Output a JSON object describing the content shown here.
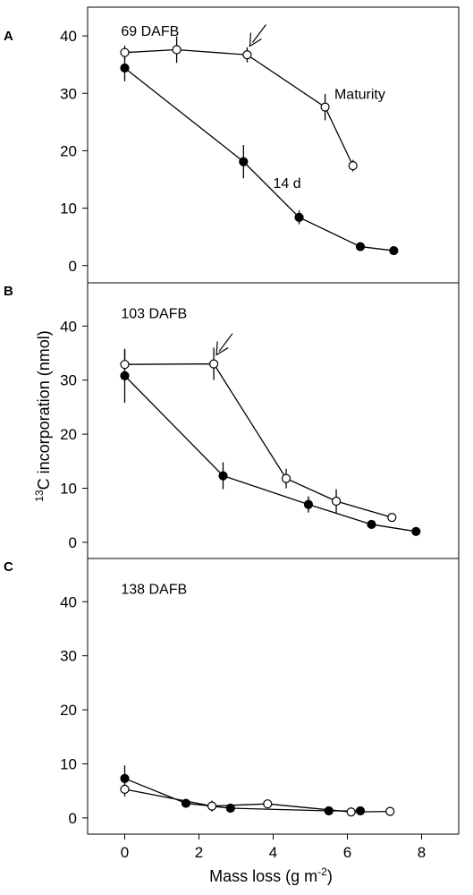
{
  "figure": {
    "xlabel_main": "Mass loss (g m",
    "xlabel_sup": "-2",
    "xlabel_close": ")",
    "ylabel_sup": "13",
    "ylabel_main": "C incorporation (nmol)"
  },
  "chart_data": [
    {
      "type": "line",
      "panel_letter": "A",
      "xlim": [
        -1,
        9
      ],
      "ylim": [
        -3,
        45
      ],
      "x_ticks": [
        0,
        2,
        4,
        6,
        8
      ],
      "y_ticks": [
        0,
        10,
        20,
        30,
        40
      ],
      "annotations": [
        {
          "text": "69 DAFB",
          "x": -0.1,
          "y": 40
        },
        {
          "text": "Maturity",
          "x": 5.65,
          "y": 29
        },
        {
          "text": "14 d",
          "x": 4.0,
          "y": 13.5
        }
      ],
      "arrow": {
        "tip_x": 3.3,
        "tip_y": 37.6
      },
      "series": [
        {
          "marker": "open",
          "x": [
            0,
            1.4,
            3.3,
            5.4,
            6.15
          ],
          "y": [
            37.1,
            37.6,
            36.7,
            27.6,
            17.4
          ],
          "err": [
            1.2,
            2.3,
            1.3,
            2.3,
            1.0
          ]
        },
        {
          "marker": "filled",
          "x": [
            0,
            3.2,
            4.7,
            6.35,
            7.25
          ],
          "y": [
            34.4,
            18.1,
            8.4,
            3.3,
            2.6
          ],
          "err": [
            2.3,
            2.9,
            1.2,
            0.4,
            0.3
          ]
        }
      ]
    },
    {
      "type": "line",
      "panel_letter": "B",
      "xlim": [
        -1,
        9
      ],
      "ylim": [
        -3,
        48
      ],
      "x_ticks": [
        0,
        2,
        4,
        6,
        8
      ],
      "y_ticks": [
        0,
        10,
        20,
        30,
        40
      ],
      "annotations": [
        {
          "text": "103 DAFB",
          "x": -0.1,
          "y": 41.5
        }
      ],
      "arrow": {
        "tip_x": 2.4,
        "tip_y": 34.0
      },
      "series": [
        {
          "marker": "open",
          "x": [
            0,
            2.4,
            4.35,
            5.7,
            7.2
          ],
          "y": [
            32.9,
            33.0,
            11.8,
            7.6,
            4.6
          ],
          "err": [
            2.7,
            3.0,
            1.8,
            2.2,
            0.4
          ]
        },
        {
          "marker": "filled",
          "x": [
            0,
            2.65,
            4.95,
            6.65,
            7.85
          ],
          "y": [
            30.8,
            12.3,
            7.0,
            3.3,
            2.0
          ],
          "err": [
            5.0,
            2.5,
            1.5,
            0.4,
            0.3
          ]
        }
      ]
    },
    {
      "type": "line",
      "panel_letter": "C",
      "xlim": [
        -1,
        9
      ],
      "ylim": [
        -3,
        48
      ],
      "x_ticks": [
        0,
        2,
        4,
        6,
        8
      ],
      "y_ticks": [
        0,
        10,
        20,
        30,
        40
      ],
      "annotations": [
        {
          "text": "138 DAFB",
          "x": -0.1,
          "y": 41.5
        }
      ],
      "series": [
        {
          "marker": "open",
          "x": [
            0,
            2.35,
            3.85,
            6.1,
            7.15
          ],
          "y": [
            5.3,
            2.2,
            2.6,
            1.1,
            1.2
          ],
          "err": [
            1.3,
            1.0,
            0.5,
            0.3,
            0.3
          ]
        },
        {
          "marker": "filled",
          "x": [
            0,
            1.65,
            2.85,
            5.5,
            6.35
          ],
          "y": [
            7.3,
            2.7,
            1.8,
            1.3,
            1.3
          ],
          "err": [
            2.4,
            0.8,
            0.4,
            0.3,
            0.3
          ]
        }
      ]
    }
  ]
}
